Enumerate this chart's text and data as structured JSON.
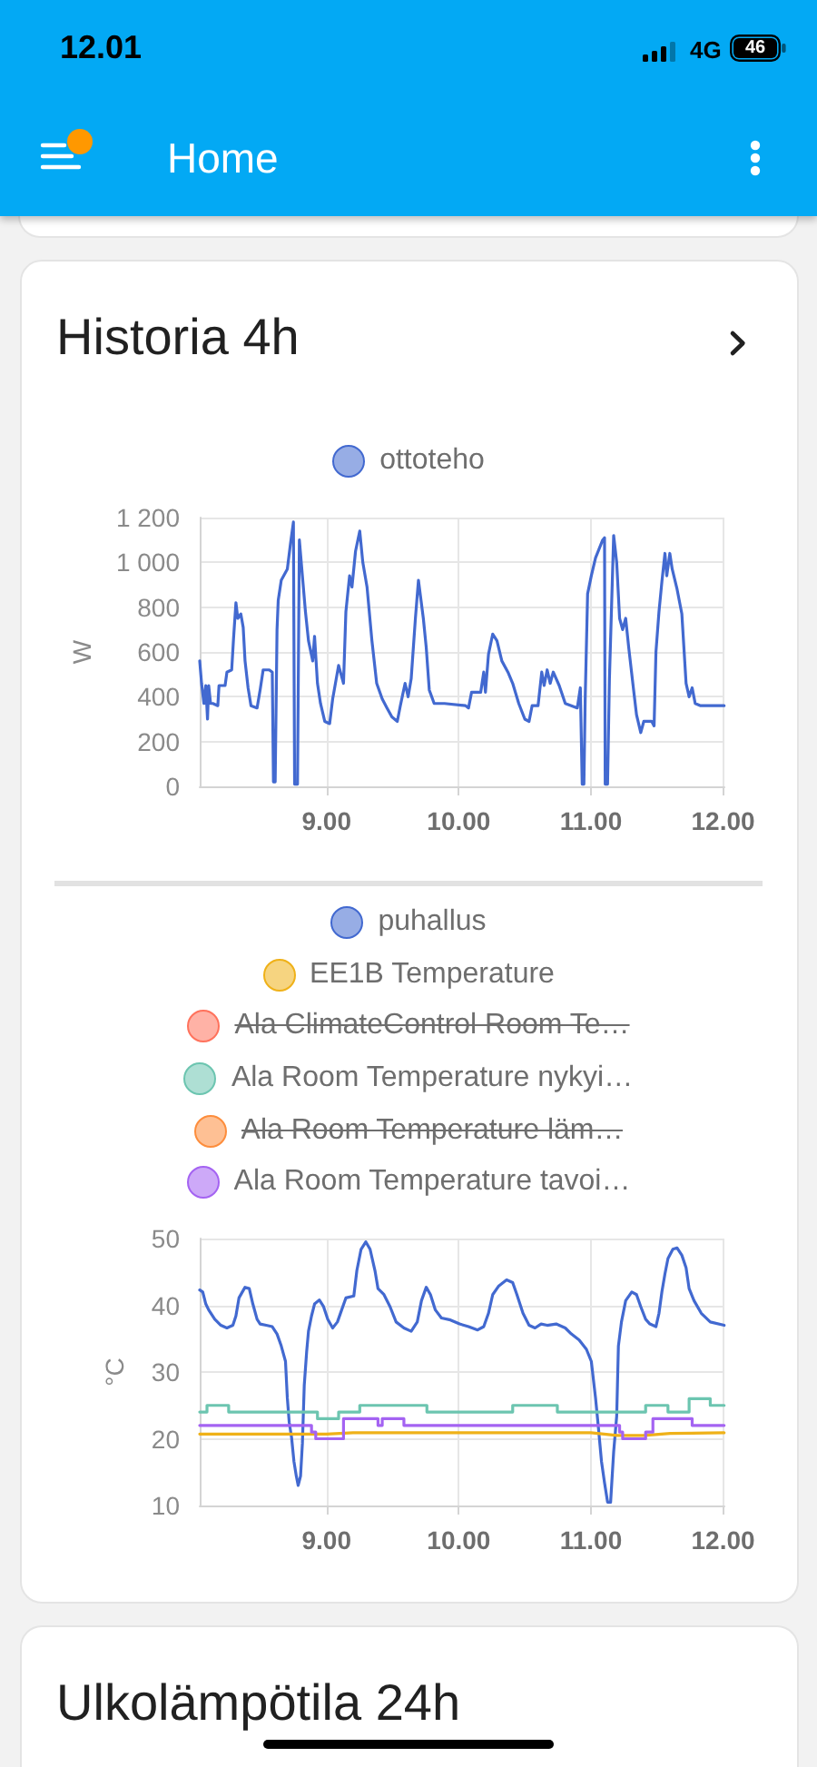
{
  "chart_data": [
    {
      "type": "other",
      "title": "Home",
      "annotations": [
        "12.01",
        "4G",
        "46"
      ]
    },
    {
      "type": "line",
      "title": "Historia 4h",
      "ylabel": "W",
      "xlim": [
        8.04,
        12.01
      ],
      "xticks": [
        {
          "value": 9,
          "label": "9.00"
        },
        {
          "value": 10,
          "label": "10.00"
        },
        {
          "value": 11,
          "label": "11.00"
        },
        {
          "value": 12,
          "label": "12.00"
        }
      ],
      "ylim": [
        0,
        1200
      ],
      "yticks": [
        0,
        200,
        400,
        600,
        800,
        {
          "value": 1000,
          "label": "1 000"
        },
        {
          "value": 1200,
          "label": "1 200"
        }
      ],
      "grid": true,
      "legend": "top",
      "marker": "none",
      "series": [
        {
          "name": "ottoteho",
          "color": "#4269d0",
          "x": [
            8.04,
            8.054,
            8.072,
            8.086,
            8.099,
            8.108,
            8.122,
            8.14,
            8.177,
            8.186,
            8.232,
            8.246,
            8.282,
            8.296,
            8.314,
            8.328,
            8.351,
            8.369,
            8.383,
            8.406,
            8.428,
            8.474,
            8.497,
            8.52,
            8.566,
            8.589,
            8.598,
            8.611,
            8.625,
            8.634,
            8.657,
            8.703,
            8.726,
            8.749,
            8.758,
            8.78,
            8.794,
            8.84,
            8.863,
            8.895,
            8.909,
            8.931,
            8.954,
            8.986,
            9.023,
            9.046,
            9.091,
            9.128,
            9.146,
            9.174,
            9.192,
            9.219,
            9.251,
            9.274,
            9.306,
            9.343,
            9.379,
            9.421,
            9.457,
            9.494,
            9.535,
            9.558,
            9.594,
            9.617,
            9.64,
            9.672,
            9.695,
            9.732,
            9.754,
            9.777,
            9.814,
            9.892,
            10.052,
            10.074,
            10.097,
            10.166,
            10.189,
            10.202,
            10.225,
            10.257,
            10.289,
            10.326,
            10.372,
            10.408,
            10.454,
            10.5,
            10.532,
            10.555,
            10.6,
            10.628,
            10.646,
            10.669,
            10.692,
            10.715,
            10.76,
            10.806,
            10.897,
            10.92,
            10.934,
            10.947,
            10.957,
            10.975,
            11.003,
            11.035,
            11.089,
            11.103,
            11.108,
            11.126,
            11.14,
            11.172,
            11.195,
            11.217,
            11.24,
            11.263,
            11.286,
            11.323,
            11.345,
            11.377,
            11.4,
            11.46,
            11.478,
            11.492,
            11.515,
            11.538,
            11.56,
            11.574,
            11.597,
            11.615,
            11.652,
            11.688,
            11.72,
            11.743,
            11.766,
            11.789,
            11.83,
            12.008
          ],
          "values": [
            560,
            460,
            370,
            450,
            300,
            450,
            370,
            370,
            360,
            450,
            450,
            510,
            520,
            660,
            820,
            750,
            770,
            710,
            560,
            440,
            360,
            350,
            430,
            520,
            520,
            510,
            20,
            20,
            700,
            830,
            920,
            970,
            1080,
            1180,
            10,
            10,
            1100,
            780,
            650,
            560,
            670,
            460,
            370,
            290,
            280,
            390,
            540,
            460,
            780,
            940,
            890,
            1050,
            1140,
            1000,
            890,
            650,
            460,
            390,
            350,
            310,
            290,
            360,
            460,
            400,
            480,
            750,
            920,
            750,
            620,
            430,
            370,
            370,
            360,
            350,
            420,
            420,
            510,
            420,
            590,
            680,
            650,
            560,
            510,
            460,
            370,
            300,
            290,
            360,
            360,
            510,
            450,
            520,
            460,
            510,
            450,
            370,
            350,
            440,
            10,
            10,
            400,
            860,
            940,
            1020,
            1100,
            1110,
            10,
            10,
            480,
            1120,
            1000,
            750,
            700,
            750,
            620,
            430,
            320,
            240,
            290,
            290,
            270,
            600,
            780,
            920,
            1040,
            940,
            1040,
            970,
            880,
            770,
            460,
            400,
            440,
            370,
            360,
            360
          ]
        }
      ]
    },
    {
      "type": "line",
      "ylabel": "°C",
      "xlim": [
        8.04,
        12.01
      ],
      "xticks": [
        {
          "value": 9,
          "label": "9.00"
        },
        {
          "value": 10,
          "label": "10.00"
        },
        {
          "value": 11,
          "label": "11.00"
        },
        {
          "value": 12,
          "label": "12.00"
        }
      ],
      "ylim": [
        10,
        50
      ],
      "yticks": [
        10,
        20,
        30,
        40,
        50
      ],
      "grid": true,
      "legend": "top",
      "marker": "none",
      "series": [
        {
          "name": "puhallus",
          "color": "#4269d0",
          "x": [
            8.04,
            8.063,
            8.086,
            8.108,
            8.154,
            8.2,
            8.246,
            8.291,
            8.314,
            8.337,
            8.383,
            8.415,
            8.442,
            8.474,
            8.497,
            8.543,
            8.589,
            8.625,
            8.657,
            8.689,
            8.703,
            8.717,
            8.735,
            8.753,
            8.771,
            8.785,
            8.803,
            8.817,
            8.831,
            8.849,
            8.863,
            8.886,
            8.909,
            8.945,
            8.977,
            9.009,
            9.046,
            9.082,
            9.114,
            9.146,
            9.206,
            9.229,
            9.261,
            9.297,
            9.329,
            9.366,
            9.389,
            9.434,
            9.48,
            9.526,
            9.585,
            9.64,
            9.686,
            9.718,
            9.754,
            9.786,
            9.823,
            9.869,
            9.937,
            10.006,
            10.074,
            10.143,
            10.189,
            10.225,
            10.257,
            10.303,
            10.362,
            10.408,
            10.44,
            10.486,
            10.532,
            10.577,
            10.623,
            10.669,
            10.737,
            10.806,
            10.852,
            10.911,
            10.966,
            11.003,
            11.035,
            11.057,
            11.08,
            11.103,
            11.126,
            11.149,
            11.172,
            11.195,
            11.208,
            11.231,
            11.263,
            11.309,
            11.345,
            11.377,
            11.414,
            11.446,
            11.492,
            11.515,
            11.537,
            11.56,
            11.583,
            11.62,
            11.652,
            11.688,
            11.72,
            11.743,
            11.78,
            11.835,
            11.903,
            12.008
          ],
          "values": [
            42.3,
            42.0,
            40.2,
            39.3,
            37.9,
            37.0,
            36.6,
            37.0,
            38.4,
            41.1,
            42.7,
            42.5,
            40.2,
            37.9,
            37.2,
            37.0,
            36.8,
            35.7,
            33.9,
            31.6,
            26.1,
            22.5,
            20.2,
            16.6,
            14.4,
            13.0,
            14.4,
            19.3,
            28.0,
            33.0,
            36.1,
            38.4,
            40.2,
            40.8,
            39.8,
            37.9,
            36.6,
            37.5,
            39.3,
            41.1,
            41.4,
            45.2,
            48.4,
            49.5,
            48.4,
            45.2,
            42.5,
            41.6,
            39.8,
            37.5,
            36.6,
            36.1,
            37.5,
            40.7,
            42.7,
            41.6,
            39.3,
            38.1,
            37.8,
            37.2,
            36.8,
            36.3,
            36.8,
            38.8,
            41.6,
            42.9,
            43.8,
            43.4,
            41.6,
            38.8,
            37.0,
            36.6,
            37.2,
            37.0,
            37.2,
            36.6,
            35.7,
            34.8,
            33.4,
            31.6,
            26.1,
            21.6,
            16.6,
            13.4,
            10.5,
            10.5,
            18.0,
            23.4,
            33.9,
            37.5,
            40.7,
            42.0,
            41.6,
            39.8,
            37.9,
            37.2,
            36.8,
            38.8,
            42.0,
            44.7,
            47.0,
            48.4,
            48.6,
            47.5,
            45.6,
            42.5,
            40.7,
            38.8,
            37.5,
            37.0
          ]
        },
        {
          "name": "EE1B Temperature",
          "color": "#efb118",
          "x": [
            8.04,
            9.0,
            9.2,
            10.5,
            11.0,
            11.2,
            11.4,
            11.6,
            12.008
          ],
          "values": [
            20.7,
            20.7,
            20.9,
            20.9,
            20.9,
            20.5,
            20.5,
            20.8,
            20.9
          ]
        },
        {
          "name": "Ala ClimateControl Room Te…",
          "color": "#ff725c"
        },
        {
          "name": "Ala Room Temperature nykyi…",
          "type": "step",
          "color": "#6cc5b0",
          "x": [
            8.04,
            8.095,
            8.259,
            8.931,
            9.091,
            9.251,
            9.759,
            10.408,
            10.746,
            11.414,
            11.583,
            11.743,
            11.903,
            12.008
          ],
          "values": [
            24,
            25,
            24,
            23,
            24,
            25,
            24,
            25,
            24,
            25,
            24,
            26,
            25,
            25
          ]
        },
        {
          "name": "Ala Room Temperature läm…",
          "color": "#fd8d3c"
        },
        {
          "name": "Ala Room Temperature tavoi…",
          "type": "step",
          "color": "#a463f2",
          "x": [
            8.04,
            8.886,
            8.918,
            9.128,
            9.389,
            9.421,
            9.585,
            11.217,
            11.24,
            11.414,
            11.469,
            11.766,
            12.008
          ],
          "values": [
            22,
            21,
            20,
            23,
            22,
            23,
            22,
            21,
            20,
            21,
            23,
            22,
            22
          ]
        }
      ]
    },
    {
      "type": "other",
      "title": "Ulkolämpötila 24h"
    }
  ]
}
